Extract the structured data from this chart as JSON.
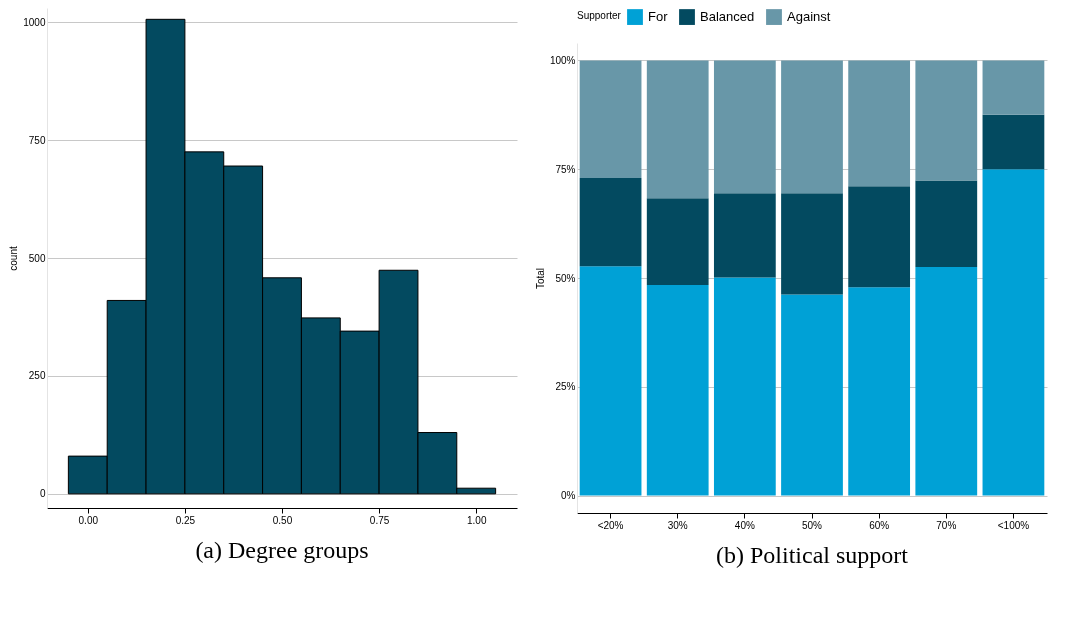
{
  "chart_data": [
    {
      "type": "histogram",
      "title": "(a) Degree groups",
      "ylabel": "count",
      "color": "#034a60",
      "bins": [
        -0.05,
        0.05,
        0.15,
        0.25,
        0.35,
        0.45,
        0.55,
        0.65,
        0.75,
        0.85,
        0.95,
        1.05
      ],
      "values": [
        80,
        410,
        1006,
        725,
        695,
        458,
        373,
        345,
        474,
        130,
        12
      ],
      "xlim": [
        -0.105,
        1.105
      ],
      "xticks": [
        {
          "value": 0,
          "label": "0.00"
        },
        {
          "value": 0.25,
          "label": "0.25"
        },
        {
          "value": 0.5,
          "label": "0.50"
        },
        {
          "value": 0.75,
          "label": "0.75"
        },
        {
          "value": 1,
          "label": "1.00"
        }
      ],
      "ylim": [
        -30,
        1030
      ],
      "yticks": [
        0,
        250,
        500,
        750,
        1000
      ],
      "grid": "y"
    },
    {
      "type": "bar",
      "title": "(b) Political support",
      "ylabel": "Total",
      "legend_title": "Supporter",
      "stacked": true,
      "categories": [
        "<20%",
        "30%",
        "40%",
        "50%",
        "60%",
        "70%",
        "<100%"
      ],
      "series": [
        {
          "name": "For",
          "color": "#00a1d6",
          "values": [
            52.7,
            48.4,
            50.1,
            46.2,
            47.9,
            52.5,
            75
          ]
        },
        {
          "name": "Balanced",
          "color": "#034a60",
          "values": [
            20.3,
            19.9,
            19.4,
            23.3,
            23.2,
            19.9,
            12.5
          ]
        },
        {
          "name": "Against",
          "color": "#6897a8",
          "values": [
            27,
            31.7,
            30.5,
            30.5,
            28.9,
            27.6,
            12.5
          ]
        }
      ],
      "ylim": [
        -4,
        104
      ],
      "yticks": [
        {
          "value": 0,
          "label": "0%"
        },
        {
          "value": 25,
          "label": "25%"
        },
        {
          "value": 50,
          "label": "50%"
        },
        {
          "value": 75,
          "label": "75%"
        },
        {
          "value": 100,
          "label": "100%"
        }
      ],
      "grid": "y",
      "legend": "top"
    }
  ]
}
